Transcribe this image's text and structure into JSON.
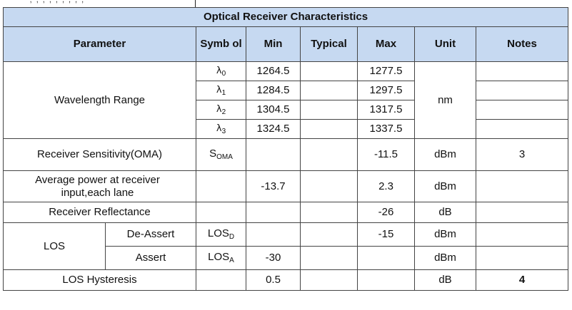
{
  "table": {
    "title": "Optical Receiver Characteristics",
    "headers": {
      "parameter": "Parameter",
      "symbol": "Symb ol",
      "min": "Min",
      "typical": "Typical",
      "max": "Max",
      "unit": "Unit",
      "notes": "Notes"
    },
    "wavelength": {
      "label": "Wavelength Range",
      "unit": "nm",
      "rows": [
        {
          "sym": "λ",
          "sub": "0",
          "min": "1264.5",
          "max": "1277.5"
        },
        {
          "sym": "λ",
          "sub": "1",
          "min": "1284.5",
          "max": "1297.5"
        },
        {
          "sym": "λ",
          "sub": "2",
          "min": "1304.5",
          "max": "1317.5"
        },
        {
          "sym": "λ",
          "sub": "3",
          "min": "1324.5",
          "max": "1337.5"
        }
      ]
    },
    "sensitivity": {
      "label": "Receiver Sensitivity(OMA)",
      "sym": "S",
      "sub": "OMA",
      "max": "-11.5",
      "unit": "dBm",
      "notes": "3"
    },
    "avg_power": {
      "label": "Average power at receiver input,each lane",
      "min": "-13.7",
      "max": "2.3",
      "unit": "dBm"
    },
    "reflectance": {
      "label": "Receiver Reflectance",
      "max": "-26",
      "unit": "dB"
    },
    "los": {
      "label": "LOS",
      "deassert": {
        "label": "De-Assert",
        "sym": "LOS",
        "sub": "D",
        "max": "-15",
        "unit": "dBm"
      },
      "assert": {
        "label": "Assert",
        "sym": "LOS",
        "sub": "A",
        "min": "-30",
        "unit": "dBm"
      }
    },
    "hysteresis": {
      "label": "LOS Hysteresis",
      "min": "0.5",
      "unit": "dB",
      "notes": "4"
    }
  }
}
